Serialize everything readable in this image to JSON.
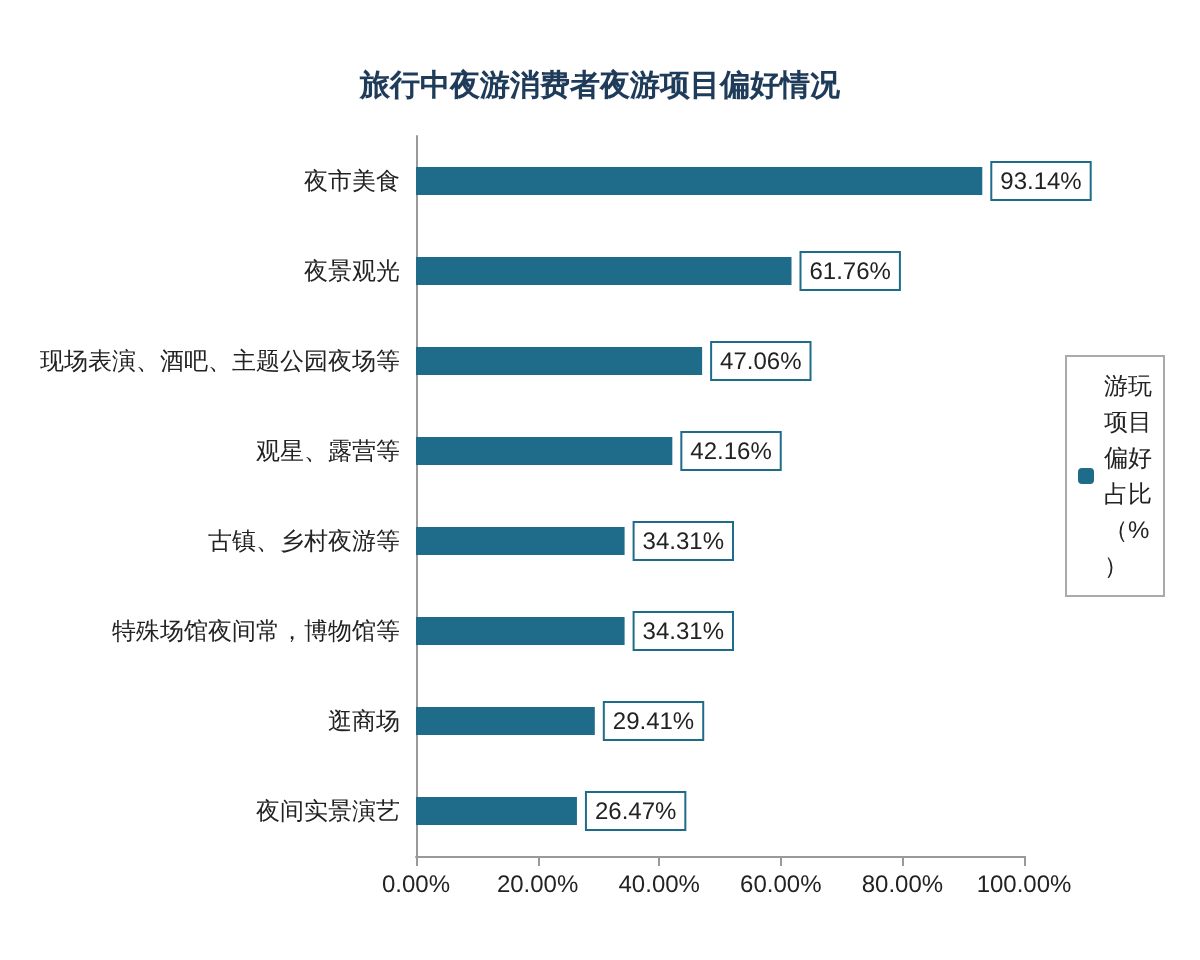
{
  "chart_data": {
    "type": "bar",
    "orientation": "horizontal",
    "title": "旅行中夜游消费者夜游项目偏好情况",
    "categories": [
      "夜市美食",
      "夜景观光",
      "现场表演、酒吧、主题公园夜场等",
      "观星、露营等",
      "古镇、乡村夜游等",
      "特殊场馆夜间常，博物馆等",
      "逛商场",
      "夜间实景演艺"
    ],
    "series": [
      {
        "name": "游玩项目偏好占比（%）",
        "color": "#1f6b8a",
        "values": [
          93.14,
          61.76,
          47.06,
          42.16,
          34.31,
          34.31,
          29.41,
          26.47
        ],
        "value_labels": [
          "93.14%",
          "61.76%",
          "47.06%",
          "42.16%",
          "34.31%",
          "34.31%",
          "29.41%",
          "26.47%"
        ]
      }
    ],
    "xlim": [
      0,
      100
    ],
    "xticks": [
      {
        "value": 0,
        "label": "0.00%"
      },
      {
        "value": 20,
        "label": "20.00%"
      },
      {
        "value": 40,
        "label": "40.00%"
      },
      {
        "value": 60,
        "label": "60.00%"
      },
      {
        "value": 80,
        "label": "80.00%"
      },
      {
        "value": 100,
        "label": "100.00%"
      }
    ],
    "grid": false,
    "legend": "right"
  }
}
